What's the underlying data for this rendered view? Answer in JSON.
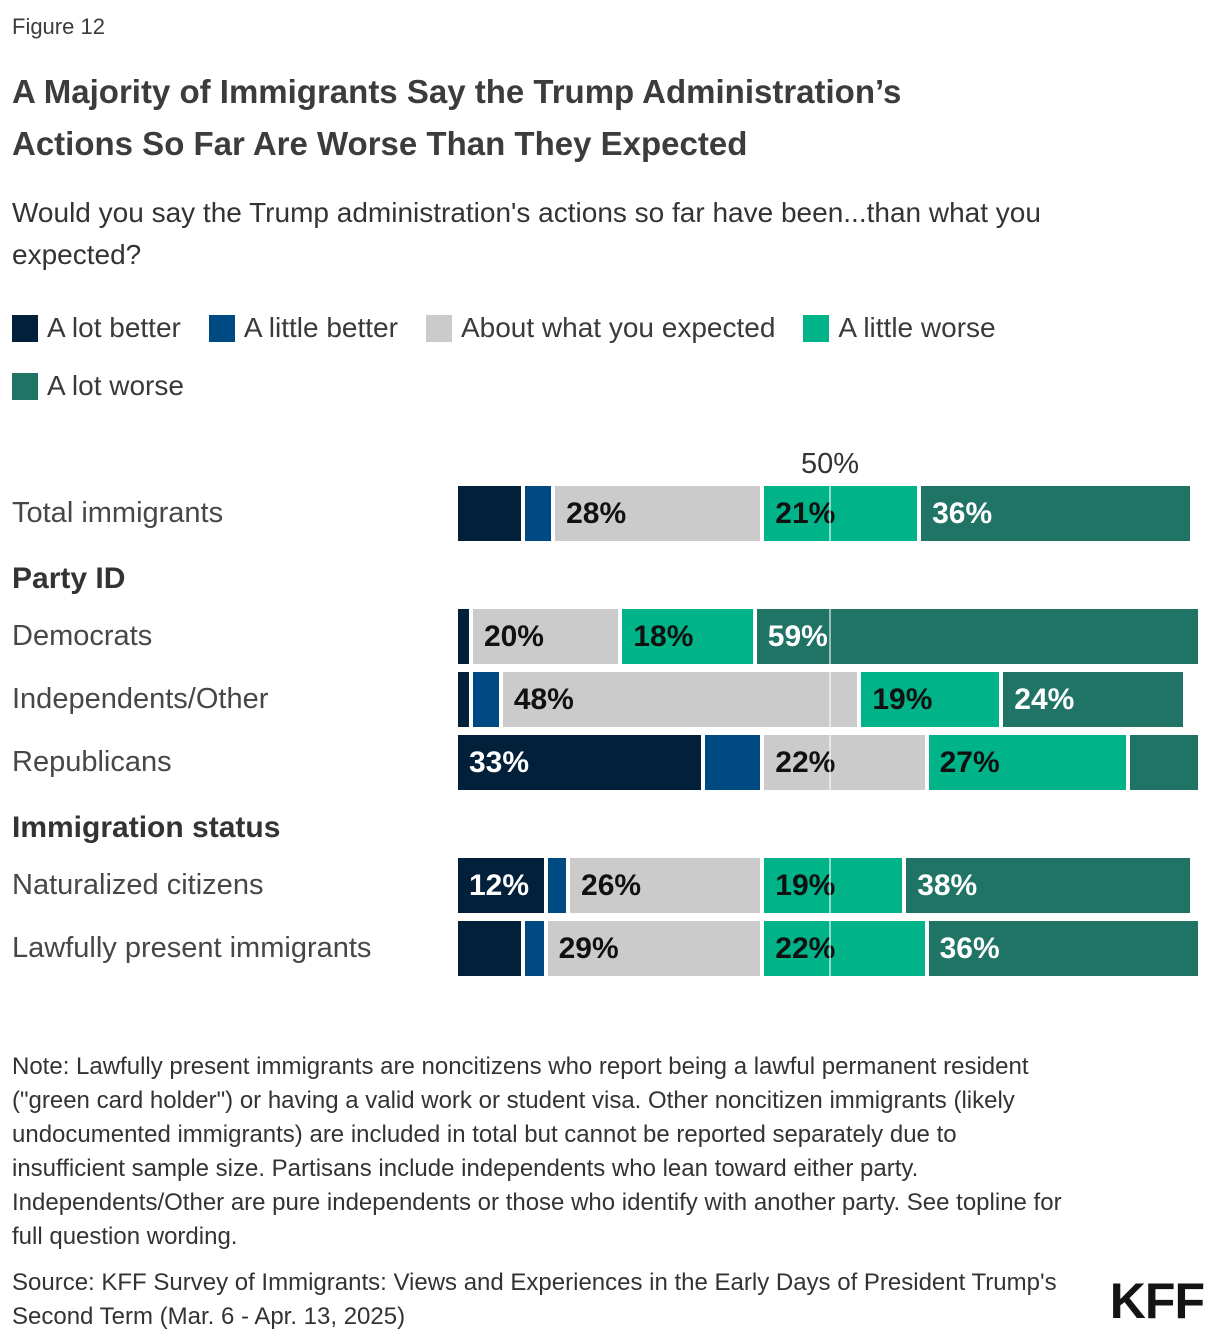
{
  "figure_label": "Figure 12",
  "title": "A Majority of Immigrants Say the Trump Administration’s Actions So Far Are Worse Than They Expected",
  "subtitle": "Would you say the Trump administration's actions so far have been...than what you expected?",
  "colors": {
    "a_lot_better": "#02203A",
    "a_little_better": "#004A84",
    "about_expected": "#CBCBCB",
    "a_little_worse": "#00B389",
    "a_lot_worse": "#1F7465",
    "label_on_dark": "#FFFFFF",
    "label_on_light": "#111111",
    "gridline": "rgba(255,255,255,0.55)"
  },
  "chart_data": {
    "type": "bar",
    "orientation": "horizontal-stacked",
    "axis": {
      "xlim": [
        0,
        100
      ],
      "tick_value": 50,
      "tick_label": "50%",
      "grid": "single-line-at-50"
    },
    "value_label_threshold": 12,
    "legend": [
      {
        "key": "a_lot_better",
        "label": "A lot better"
      },
      {
        "key": "a_little_better",
        "label": "A little better"
      },
      {
        "key": "about_expected",
        "label": "About what you expected"
      },
      {
        "key": "a_little_worse",
        "label": "A little worse"
      },
      {
        "key": "a_lot_worse",
        "label": "A lot worse"
      }
    ],
    "rows": [
      {
        "kind": "bar",
        "label": "Total immigrants",
        "values": [
          9,
          4,
          28,
          21,
          36
        ]
      },
      {
        "kind": "header",
        "label": "Party ID"
      },
      {
        "kind": "bar",
        "label": "Democrats",
        "values": [
          2,
          0,
          20,
          18,
          59
        ]
      },
      {
        "kind": "bar",
        "label": "Independents/Other",
        "values": [
          2,
          4,
          48,
          19,
          24
        ]
      },
      {
        "kind": "bar",
        "label": "Republicans",
        "values": [
          33,
          8,
          22,
          27,
          9
        ]
      },
      {
        "kind": "header",
        "label": "Immigration status"
      },
      {
        "kind": "bar",
        "label": "Naturalized citizens",
        "values": [
          12,
          3,
          26,
          19,
          38
        ]
      },
      {
        "kind": "bar",
        "label": "Lawfully present immigrants",
        "values": [
          9,
          3,
          29,
          22,
          36
        ]
      }
    ]
  },
  "note": "Note: Lawfully present immigrants are noncitizens who report being a lawful permanent resident (\"green card holder\") or having a valid work or student visa. Other noncitizen immigrants (likely undocumented immigrants) are included in total but cannot be reported separately due to insufficient sample size. Partisans include independents who lean toward either party. Independents/Other are pure independents or those who identify with another party. See topline for full question wording.",
  "source": "Source: KFF Survey of Immigrants: Views and Experiences in the Early Days of President Trump's Second Term (Mar. 6 - Apr. 13, 2025)",
  "logo_text": "KFF"
}
